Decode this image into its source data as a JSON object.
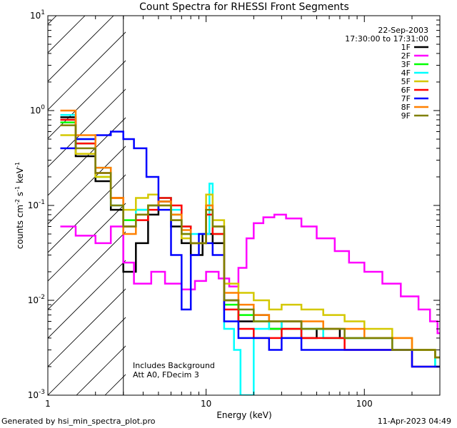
{
  "chart_data": {
    "type": "line",
    "step": true,
    "title": "Count Spectra for RHESSI Front Segments",
    "xlabel": "Energy (keV)",
    "ylabel": "counts cm^-2 s^-1 keV^-1",
    "xscale": "log",
    "yscale": "log",
    "xlim": [
      1,
      300
    ],
    "ylim": [
      0.001,
      10
    ],
    "x_ticks": [
      {
        "v": 1,
        "label": "1"
      },
      {
        "v": 10,
        "label": "10"
      },
      {
        "v": 100,
        "label": "100"
      }
    ],
    "y_ticks": [
      {
        "exp": -3,
        "label": "10",
        "sup": "-3"
      },
      {
        "exp": -2,
        "label": "10",
        "sup": "-2"
      },
      {
        "exp": -1,
        "label": "10",
        "sup": "-1"
      },
      {
        "exp": 0,
        "label": "10",
        "sup": "0"
      },
      {
        "exp": 1,
        "label": "10",
        "sup": "1"
      }
    ],
    "date": "22-Sep-2003",
    "time_range": "17:30:00 to 17:31:00",
    "hatched_region": [
      1,
      3
    ],
    "annotations": [
      "Includes Background",
      "Att A0, FDecim 3"
    ],
    "series": [
      {
        "name": "1F",
        "color": "#000000",
        "points": [
          [
            1.2,
            0.85
          ],
          [
            1.5,
            0.33
          ],
          [
            2.0,
            0.18
          ],
          [
            2.5,
            0.09
          ],
          [
            3.0,
            0.02
          ],
          [
            3.6,
            0.04
          ],
          [
            4.3,
            0.08
          ],
          [
            5.0,
            0.11
          ],
          [
            6.0,
            0.06
          ],
          [
            7.0,
            0.04
          ],
          [
            8.0,
            0.03
          ],
          [
            9.5,
            0.05
          ],
          [
            11.0,
            0.04
          ],
          [
            13.0,
            0.01
          ],
          [
            16.0,
            0.006
          ],
          [
            20.0,
            0.007
          ],
          [
            25.0,
            0.005
          ],
          [
            30.0,
            0.006
          ],
          [
            40.0,
            0.004
          ],
          [
            50.0,
            0.005
          ],
          [
            70.0,
            0.004
          ],
          [
            100.0,
            0.004
          ],
          [
            150.0,
            0.003
          ],
          [
            200.0,
            0.003
          ],
          [
            280.0,
            0.0025
          ]
        ]
      },
      {
        "name": "2F",
        "color": "#ff00ff",
        "points": [
          [
            1.2,
            0.06
          ],
          [
            1.5,
            0.048
          ],
          [
            2.0,
            0.04
          ],
          [
            2.5,
            0.06
          ],
          [
            3.0,
            0.025
          ],
          [
            3.5,
            0.015
          ],
          [
            4.5,
            0.02
          ],
          [
            5.5,
            0.015
          ],
          [
            7.0,
            0.013
          ],
          [
            8.5,
            0.016
          ],
          [
            10.0,
            0.02
          ],
          [
            12.0,
            0.017
          ],
          [
            14.0,
            0.014
          ],
          [
            16.0,
            0.022
          ],
          [
            18.0,
            0.045
          ],
          [
            20.0,
            0.065
          ],
          [
            23.0,
            0.075
          ],
          [
            27.0,
            0.08
          ],
          [
            32.0,
            0.073
          ],
          [
            40.0,
            0.06
          ],
          [
            50.0,
            0.045
          ],
          [
            65.0,
            0.033
          ],
          [
            80.0,
            0.025
          ],
          [
            100.0,
            0.02
          ],
          [
            130.0,
            0.015
          ],
          [
            170.0,
            0.011
          ],
          [
            220.0,
            0.008
          ],
          [
            260.0,
            0.006
          ],
          [
            290.0,
            0.0045
          ]
        ]
      },
      {
        "name": "3F",
        "color": "#00ff00",
        "points": [
          [
            1.2,
            0.75
          ],
          [
            1.5,
            0.45
          ],
          [
            2.0,
            0.2
          ],
          [
            2.5,
            0.12
          ],
          [
            3.0,
            0.07
          ],
          [
            3.6,
            0.09
          ],
          [
            4.3,
            0.1
          ],
          [
            5.0,
            0.12
          ],
          [
            6.0,
            0.08
          ],
          [
            7.0,
            0.05
          ],
          [
            8.0,
            0.04
          ],
          [
            10.0,
            0.1
          ],
          [
            11.0,
            0.05
          ],
          [
            13.0,
            0.009
          ],
          [
            16.0,
            0.007
          ],
          [
            20.0,
            0.006
          ],
          [
            25.0,
            0.005
          ],
          [
            30.0,
            0.005
          ],
          [
            40.0,
            0.005
          ],
          [
            55.0,
            0.004
          ],
          [
            75.0,
            0.004
          ],
          [
            100.0,
            0.004
          ],
          [
            150.0,
            0.003
          ],
          [
            200.0,
            0.003
          ],
          [
            280.0,
            0.002
          ]
        ]
      },
      {
        "name": "4F",
        "color": "#00ffff",
        "points": [
          [
            1.2,
            0.9
          ],
          [
            1.5,
            0.5
          ],
          [
            2.0,
            0.25
          ],
          [
            2.5,
            0.1
          ],
          [
            3.0,
            0.06
          ],
          [
            3.6,
            0.09
          ],
          [
            4.3,
            0.1
          ],
          [
            5.0,
            0.12
          ],
          [
            6.0,
            0.09
          ],
          [
            7.0,
            0.06
          ],
          [
            8.0,
            0.05
          ],
          [
            10.5,
            0.17
          ],
          [
            11.0,
            0.06
          ],
          [
            13.0,
            0.005
          ],
          [
            15.0,
            0.003
          ],
          [
            16.5,
            0.001
          ],
          [
            20.0,
            0.005
          ],
          [
            25.0,
            0.006
          ],
          [
            30.0,
            0.004
          ],
          [
            40.0,
            0.005
          ],
          [
            55.0,
            0.004
          ],
          [
            75.0,
            0.004
          ],
          [
            100.0,
            0.004
          ],
          [
            150.0,
            0.003
          ],
          [
            200.0,
            0.003
          ],
          [
            280.0,
            0.002
          ]
        ]
      },
      {
        "name": "5F",
        "color": "#d4c800",
        "points": [
          [
            1.2,
            0.55
          ],
          [
            1.5,
            0.35
          ],
          [
            2.0,
            0.2
          ],
          [
            2.5,
            0.12
          ],
          [
            3.0,
            0.09
          ],
          [
            3.6,
            0.12
          ],
          [
            4.3,
            0.13
          ],
          [
            5.0,
            0.1
          ],
          [
            6.0,
            0.07
          ],
          [
            7.0,
            0.045
          ],
          [
            8.0,
            0.04
          ],
          [
            10.0,
            0.13
          ],
          [
            11.0,
            0.07
          ],
          [
            13.0,
            0.015
          ],
          [
            16.0,
            0.012
          ],
          [
            20.0,
            0.01
          ],
          [
            25.0,
            0.008
          ],
          [
            30.0,
            0.009
          ],
          [
            40.0,
            0.008
          ],
          [
            55.0,
            0.007
          ],
          [
            75.0,
            0.006
          ],
          [
            100.0,
            0.005
          ],
          [
            150.0,
            0.004
          ],
          [
            200.0,
            0.003
          ],
          [
            280.0,
            0.0025
          ]
        ]
      },
      {
        "name": "6F",
        "color": "#ff0000",
        "points": [
          [
            1.2,
            0.8
          ],
          [
            1.5,
            0.45
          ],
          [
            2.0,
            0.22
          ],
          [
            2.5,
            0.12
          ],
          [
            3.0,
            0.06
          ],
          [
            3.6,
            0.07
          ],
          [
            4.3,
            0.09
          ],
          [
            5.0,
            0.12
          ],
          [
            6.0,
            0.1
          ],
          [
            7.0,
            0.06
          ],
          [
            8.0,
            0.04
          ],
          [
            10.0,
            0.08
          ],
          [
            11.0,
            0.05
          ],
          [
            13.0,
            0.008
          ],
          [
            16.0,
            0.005
          ],
          [
            20.0,
            0.004
          ],
          [
            25.0,
            0.004
          ],
          [
            30.0,
            0.005
          ],
          [
            40.0,
            0.004
          ],
          [
            55.0,
            0.004
          ],
          [
            75.0,
            0.003
          ],
          [
            100.0,
            0.003
          ],
          [
            150.0,
            0.003
          ],
          [
            200.0,
            0.002
          ],
          [
            280.0,
            0.002
          ]
        ]
      },
      {
        "name": "7F",
        "color": "#0000ff",
        "points": [
          [
            1.2,
            0.4
          ],
          [
            1.5,
            0.5
          ],
          [
            2.0,
            0.55
          ],
          [
            2.5,
            0.6
          ],
          [
            3.0,
            0.5
          ],
          [
            3.5,
            0.4
          ],
          [
            4.2,
            0.2
          ],
          [
            5.0,
            0.09
          ],
          [
            6.0,
            0.03
          ],
          [
            7.0,
            0.008
          ],
          [
            8.0,
            0.03
          ],
          [
            9.0,
            0.05
          ],
          [
            10.0,
            0.04
          ],
          [
            11.0,
            0.03
          ],
          [
            13.0,
            0.006
          ],
          [
            16.0,
            0.004
          ],
          [
            20.0,
            0.004
          ],
          [
            25.0,
            0.003
          ],
          [
            30.0,
            0.004
          ],
          [
            40.0,
            0.003
          ],
          [
            55.0,
            0.003
          ],
          [
            75.0,
            0.003
          ],
          [
            100.0,
            0.003
          ],
          [
            150.0,
            0.003
          ],
          [
            200.0,
            0.002
          ],
          [
            280.0,
            0.002
          ]
        ]
      },
      {
        "name": "8F",
        "color": "#ff8000",
        "points": [
          [
            1.2,
            1.0
          ],
          [
            1.5,
            0.55
          ],
          [
            2.0,
            0.25
          ],
          [
            2.5,
            0.12
          ],
          [
            3.0,
            0.05
          ],
          [
            3.6,
            0.08
          ],
          [
            4.3,
            0.1
          ],
          [
            5.0,
            0.11
          ],
          [
            6.0,
            0.08
          ],
          [
            7.0,
            0.055
          ],
          [
            8.0,
            0.04
          ],
          [
            10.0,
            0.1
          ],
          [
            11.0,
            0.06
          ],
          [
            13.0,
            0.012
          ],
          [
            16.0,
            0.009
          ],
          [
            20.0,
            0.007
          ],
          [
            25.0,
            0.006
          ],
          [
            30.0,
            0.006
          ],
          [
            40.0,
            0.006
          ],
          [
            55.0,
            0.005
          ],
          [
            75.0,
            0.005
          ],
          [
            100.0,
            0.004
          ],
          [
            150.0,
            0.004
          ],
          [
            200.0,
            0.003
          ],
          [
            280.0,
            0.0025
          ]
        ]
      },
      {
        "name": "9F",
        "color": "#808000",
        "points": [
          [
            1.2,
            0.7
          ],
          [
            1.5,
            0.4
          ],
          [
            2.0,
            0.22
          ],
          [
            2.5,
            0.1
          ],
          [
            3.0,
            0.06
          ],
          [
            3.6,
            0.08
          ],
          [
            4.3,
            0.1
          ],
          [
            5.0,
            0.1
          ],
          [
            6.0,
            0.07
          ],
          [
            7.0,
            0.05
          ],
          [
            8.0,
            0.04
          ],
          [
            10.0,
            0.09
          ],
          [
            11.0,
            0.06
          ],
          [
            13.0,
            0.01
          ],
          [
            16.0,
            0.008
          ],
          [
            20.0,
            0.006
          ],
          [
            25.0,
            0.006
          ],
          [
            30.0,
            0.006
          ],
          [
            40.0,
            0.005
          ],
          [
            55.0,
            0.005
          ],
          [
            75.0,
            0.004
          ],
          [
            100.0,
            0.004
          ],
          [
            150.0,
            0.003
          ],
          [
            200.0,
            0.003
          ],
          [
            280.0,
            0.0025
          ]
        ]
      }
    ]
  },
  "footer": {
    "generated_by": "Generated by hsi_min_spectra_plot.pro",
    "timestamp": "11-Apr-2023 04:49"
  }
}
